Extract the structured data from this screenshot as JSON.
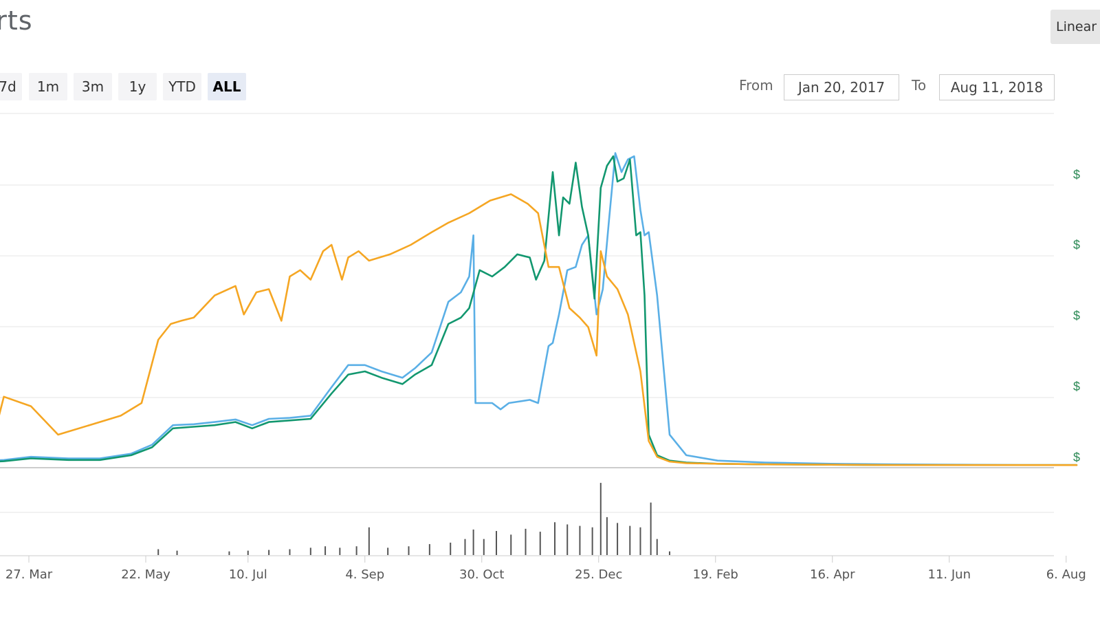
{
  "header": {
    "title": "arts",
    "scale_label": "Linear"
  },
  "range": {
    "buttons": [
      {
        "label": "7d",
        "active": false
      },
      {
        "label": "1m",
        "active": false
      },
      {
        "label": "3m",
        "active": false
      },
      {
        "label": "1y",
        "active": false
      },
      {
        "label": "YTD",
        "active": false
      },
      {
        "label": "ALL",
        "active": true
      }
    ],
    "from_label": "From",
    "from_value": "Jan 20, 2017",
    "to_label": "To",
    "to_value": "Aug 11, 2018"
  },
  "chart_data": {
    "type": "line",
    "title": "",
    "x_tick_labels": [
      "27. Mar",
      "22. May",
      "10. Jul",
      "4. Sep",
      "30. Oct",
      "25. Dec",
      "19. Feb",
      "16. Apr",
      "11. Jun",
      "6. Aug"
    ],
    "right_axis_labels": [
      "$",
      "$",
      "$",
      "$",
      "$"
    ],
    "y_relative_range": [
      0,
      1
    ],
    "grid": true,
    "colors": {
      "series_a": "#5aafe6",
      "series_b": "#12976f",
      "series_c": "#f5a623",
      "volume": "#555555",
      "grid": "#e6e6e6",
      "right_axis": "#2e8b57"
    },
    "series": [
      {
        "key": "blue",
        "x": [
          "2017-01-20",
          "2017-02-01",
          "2017-02-15",
          "2017-03-01",
          "2017-03-15",
          "2017-03-28",
          "2017-04-15",
          "2017-04-30",
          "2017-05-15",
          "2017-05-25",
          "2017-06-04",
          "2017-06-14",
          "2017-06-24",
          "2017-07-04",
          "2017-07-12",
          "2017-07-20",
          "2017-07-30",
          "2017-08-09",
          "2017-08-19",
          "2017-08-27",
          "2017-09-04",
          "2017-09-12",
          "2017-09-22",
          "2017-09-28",
          "2017-10-06",
          "2017-10-14",
          "2017-10-20",
          "2017-10-24",
          "2017-10-26",
          "2017-10-27",
          "2017-11-04",
          "2017-11-08",
          "2017-11-12",
          "2017-11-22",
          "2017-11-26",
          "2017-12-01",
          "2017-12-03",
          "2017-12-04",
          "2017-12-06",
          "2017-12-10",
          "2017-12-14",
          "2017-12-17",
          "2017-12-20",
          "2017-12-24",
          "2017-12-27",
          "2017-12-30",
          "2018-01-02",
          "2018-01-05",
          "2018-01-08",
          "2018-01-11",
          "2018-01-14",
          "2018-01-16",
          "2018-01-18",
          "2018-01-22",
          "2018-01-28",
          "2018-02-05",
          "2018-02-20",
          "2018-03-15",
          "2018-04-15",
          "2018-05-15",
          "2018-06-15",
          "2018-07-15",
          "2018-08-11"
        ],
        "y": [
          0.004,
          0.007,
          0.01,
          0.015,
          0.02,
          0.03,
          0.025,
          0.025,
          0.04,
          0.068,
          0.13,
          0.133,
          0.14,
          0.148,
          0.13,
          0.15,
          0.153,
          0.16,
          0.25,
          0.32,
          0.32,
          0.3,
          0.28,
          0.31,
          0.36,
          0.52,
          0.55,
          0.6,
          0.73,
          0.2,
          0.2,
          0.18,
          0.2,
          0.21,
          0.2,
          0.38,
          0.39,
          0.42,
          0.48,
          0.62,
          0.63,
          0.7,
          0.73,
          0.48,
          0.56,
          0.78,
          0.99,
          0.93,
          0.97,
          0.98,
          0.81,
          0.73,
          0.74,
          0.54,
          0.1,
          0.035,
          0.018,
          0.012,
          0.008,
          0.006,
          0.005,
          0.004,
          0.004
        ]
      },
      {
        "key": "green",
        "x": [
          "2017-01-20",
          "2017-02-01",
          "2017-02-15",
          "2017-03-01",
          "2017-03-15",
          "2017-03-28",
          "2017-04-15",
          "2017-04-30",
          "2017-05-15",
          "2017-05-25",
          "2017-06-04",
          "2017-06-14",
          "2017-06-24",
          "2017-07-04",
          "2017-07-12",
          "2017-07-20",
          "2017-07-30",
          "2017-08-09",
          "2017-08-19",
          "2017-08-27",
          "2017-09-04",
          "2017-09-12",
          "2017-09-22",
          "2017-09-28",
          "2017-10-06",
          "2017-10-14",
          "2017-10-20",
          "2017-10-24",
          "2017-10-29",
          "2017-11-04",
          "2017-11-10",
          "2017-11-16",
          "2017-11-22",
          "2017-11-25",
          "2017-11-29",
          "2017-12-03",
          "2017-12-06",
          "2017-12-08",
          "2017-12-11",
          "2017-12-14",
          "2017-12-17",
          "2017-12-20",
          "2017-12-23",
          "2017-12-26",
          "2017-12-29",
          "2018-01-01",
          "2018-01-03",
          "2018-01-06",
          "2018-01-09",
          "2018-01-12",
          "2018-01-14",
          "2018-01-16",
          "2018-01-18",
          "2018-01-22",
          "2018-01-28",
          "2018-02-05",
          "2018-02-20",
          "2018-03-15",
          "2018-04-15",
          "2018-05-15",
          "2018-06-15",
          "2018-07-15",
          "2018-08-11"
        ],
        "y": [
          0.003,
          0.005,
          0.008,
          0.012,
          0.016,
          0.025,
          0.02,
          0.02,
          0.035,
          0.06,
          0.12,
          0.125,
          0.13,
          0.14,
          0.12,
          0.14,
          0.145,
          0.15,
          0.23,
          0.29,
          0.3,
          0.28,
          0.26,
          0.29,
          0.32,
          0.45,
          0.47,
          0.5,
          0.62,
          0.6,
          0.63,
          0.67,
          0.66,
          0.59,
          0.65,
          0.93,
          0.73,
          0.85,
          0.83,
          0.96,
          0.82,
          0.73,
          0.53,
          0.88,
          0.95,
          0.98,
          0.9,
          0.91,
          0.97,
          0.73,
          0.74,
          0.54,
          0.1,
          0.035,
          0.018,
          0.012,
          0.008,
          0.006,
          0.005,
          0.004,
          0.004,
          0.004,
          0.004
        ]
      },
      {
        "key": "orange",
        "x": [
          "2017-01-20",
          "2017-02-01",
          "2017-02-15",
          "2017-03-01",
          "2017-03-10",
          "2017-03-15",
          "2017-03-28",
          "2017-04-10",
          "2017-04-25",
          "2017-05-10",
          "2017-05-20",
          "2017-05-28",
          "2017-06-03",
          "2017-06-08",
          "2017-06-14",
          "2017-06-24",
          "2017-07-04",
          "2017-07-08",
          "2017-07-14",
          "2017-07-20",
          "2017-07-26",
          "2017-07-30",
          "2017-08-04",
          "2017-08-09",
          "2017-08-15",
          "2017-08-19",
          "2017-08-24",
          "2017-08-27",
          "2017-09-01",
          "2017-09-06",
          "2017-09-16",
          "2017-09-26",
          "2017-10-06",
          "2017-10-14",
          "2017-10-24",
          "2017-11-03",
          "2017-11-13",
          "2017-11-21",
          "2017-11-26",
          "2017-12-01",
          "2017-12-06",
          "2017-12-11",
          "2017-12-16",
          "2017-12-20",
          "2017-12-24",
          "2017-12-26",
          "2017-12-29",
          "2018-01-03",
          "2018-01-08",
          "2018-01-14",
          "2018-01-18",
          "2018-01-22",
          "2018-01-28",
          "2018-02-05",
          "2018-02-20",
          "2018-03-15",
          "2018-04-15",
          "2018-05-15",
          "2018-06-15",
          "2018-07-15",
          "2018-08-11"
        ],
        "y": [
          0.02,
          0.025,
          0.04,
          0.07,
          0.09,
          0.22,
          0.19,
          0.1,
          0.13,
          0.16,
          0.2,
          0.4,
          0.45,
          0.46,
          0.47,
          0.54,
          0.57,
          0.48,
          0.55,
          0.56,
          0.46,
          0.6,
          0.62,
          0.59,
          0.68,
          0.7,
          0.59,
          0.66,
          0.68,
          0.65,
          0.67,
          0.7,
          0.74,
          0.77,
          0.8,
          0.84,
          0.86,
          0.83,
          0.8,
          0.63,
          0.63,
          0.5,
          0.47,
          0.44,
          0.35,
          0.68,
          0.6,
          0.56,
          0.48,
          0.3,
          0.08,
          0.03,
          0.015,
          0.01,
          0.008,
          0.006,
          0.005,
          0.004,
          0.004,
          0.004,
          0.004
        ]
      }
    ],
    "volume": {
      "x": [
        "2017-05-28",
        "2017-06-06",
        "2017-07-01",
        "2017-07-10",
        "2017-07-20",
        "2017-07-30",
        "2017-08-09",
        "2017-08-16",
        "2017-08-23",
        "2017-08-31",
        "2017-09-06",
        "2017-09-15",
        "2017-09-25",
        "2017-10-05",
        "2017-10-15",
        "2017-10-22",
        "2017-10-26",
        "2017-10-31",
        "2017-11-06",
        "2017-11-13",
        "2017-11-20",
        "2017-11-27",
        "2017-12-04",
        "2017-12-10",
        "2017-12-16",
        "2017-12-22",
        "2017-12-26",
        "2017-12-29",
        "2018-01-03",
        "2018-01-09",
        "2018-01-14",
        "2018-01-19",
        "2018-01-22",
        "2018-01-28"
      ],
      "values": [
        0.08,
        0.06,
        0.05,
        0.06,
        0.07,
        0.08,
        0.1,
        0.12,
        0.1,
        0.12,
        0.38,
        0.1,
        0.12,
        0.15,
        0.17,
        0.22,
        0.35,
        0.22,
        0.33,
        0.28,
        0.36,
        0.32,
        0.45,
        0.42,
        0.4,
        0.38,
        0.99,
        0.52,
        0.44,
        0.4,
        0.38,
        0.72,
        0.22,
        0.05
      ]
    }
  }
}
